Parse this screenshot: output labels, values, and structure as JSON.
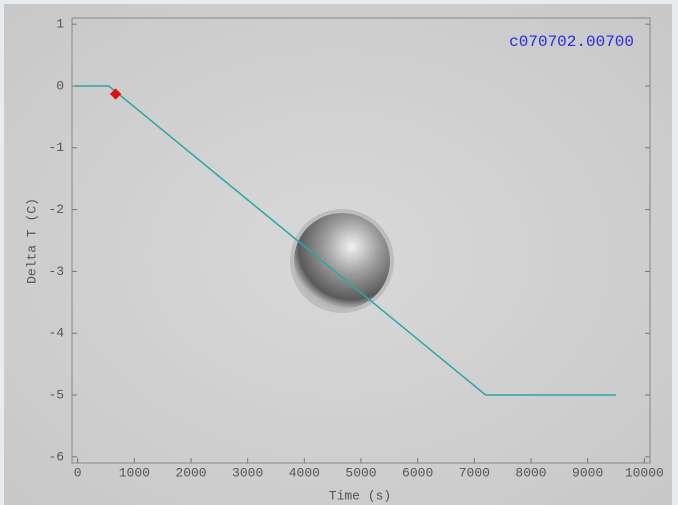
{
  "chart_data": {
    "type": "line",
    "annotation": "c070702.00700",
    "annotation_color": "#2a2ae0",
    "x_label": "Time (s)",
    "y_label": "Delta T (C)",
    "x": [
      -50,
      550,
      7200,
      9500
    ],
    "values": [
      0,
      0,
      -5,
      -5
    ],
    "color": "#2ca6a6",
    "marker": {
      "x": 670,
      "y": -0.13,
      "color": "#e01010"
    },
    "xlim": [
      -100,
      10100
    ],
    "ylim": [
      -6.1,
      1.1
    ],
    "xticks": [
      0,
      1000,
      2000,
      3000,
      4000,
      5000,
      6000,
      7000,
      8000,
      9000,
      10000
    ],
    "yticks": [
      1,
      0,
      -1,
      -2,
      -3,
      -4,
      -5,
      -6
    ]
  }
}
